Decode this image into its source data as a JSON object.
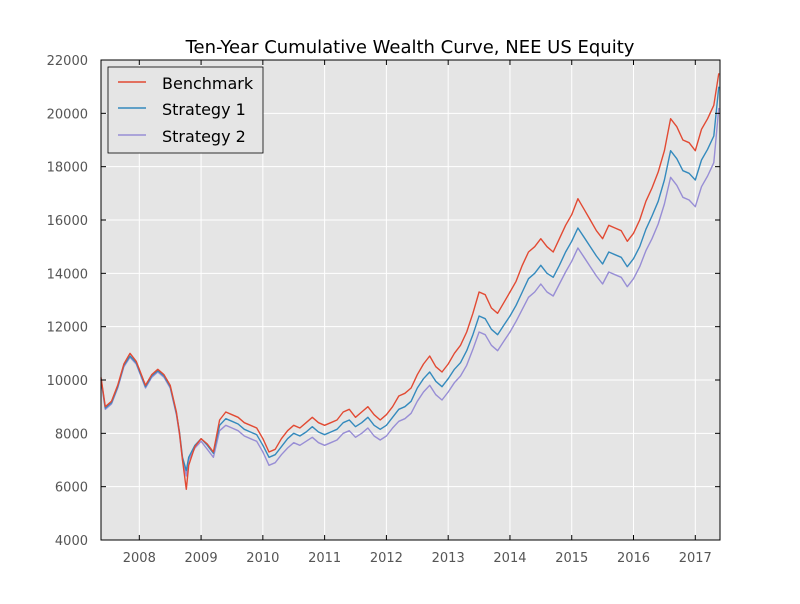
{
  "chart_data": {
    "type": "line",
    "title": "Ten-Year Cumulative Wealth Curve, NEE US Equity",
    "xlabel": "",
    "ylabel": "",
    "x_ticks": [
      "2008",
      "2009",
      "2010",
      "2011",
      "2012",
      "2013",
      "2014",
      "2015",
      "2016",
      "2017"
    ],
    "y_ticks": [
      "4000",
      "6000",
      "8000",
      "10000",
      "12000",
      "14000",
      "16000",
      "18000",
      "20000",
      "22000"
    ],
    "xlim": [
      2007.38,
      2017.4
    ],
    "ylim": [
      4000,
      22000
    ],
    "grid": true,
    "legend_position": "top-left",
    "x": [
      2007.38,
      2007.45,
      2007.55,
      2007.65,
      2007.75,
      2007.85,
      2007.95,
      2008.0,
      2008.1,
      2008.2,
      2008.3,
      2008.4,
      2008.5,
      2008.6,
      2008.65,
      2008.7,
      2008.76,
      2008.8,
      2008.9,
      2009.0,
      2009.1,
      2009.2,
      2009.3,
      2009.4,
      2009.5,
      2009.6,
      2009.7,
      2009.8,
      2009.9,
      2010.0,
      2010.1,
      2010.2,
      2010.3,
      2010.4,
      2010.5,
      2010.6,
      2010.7,
      2010.8,
      2010.9,
      2011.0,
      2011.1,
      2011.2,
      2011.3,
      2011.4,
      2011.5,
      2011.6,
      2011.7,
      2011.8,
      2011.9,
      2012.0,
      2012.1,
      2012.2,
      2012.3,
      2012.4,
      2012.5,
      2012.6,
      2012.7,
      2012.8,
      2012.9,
      2013.0,
      2013.1,
      2013.2,
      2013.3,
      2013.4,
      2013.5,
      2013.6,
      2013.7,
      2013.8,
      2013.9,
      2014.0,
      2014.1,
      2014.2,
      2014.3,
      2014.4,
      2014.5,
      2014.6,
      2014.7,
      2014.8,
      2014.9,
      2015.0,
      2015.1,
      2015.2,
      2015.3,
      2015.4,
      2015.5,
      2015.6,
      2015.7,
      2015.8,
      2015.9,
      2016.0,
      2016.1,
      2016.2,
      2016.3,
      2016.4,
      2016.5,
      2016.6,
      2016.7,
      2016.8,
      2016.9,
      2017.0,
      2017.1,
      2017.2,
      2017.3,
      2017.38
    ],
    "series": [
      {
        "name": "Benchmark",
        "color": "#E24A33",
        "values": [
          10100,
          9000,
          9200,
          9800,
          10600,
          11000,
          10700,
          10400,
          9800,
          10200,
          10400,
          10200,
          9800,
          8800,
          8000,
          7000,
          5900,
          6800,
          7500,
          7800,
          7600,
          7300,
          8500,
          8800,
          8700,
          8600,
          8400,
          8300,
          8200,
          7800,
          7300,
          7400,
          7800,
          8100,
          8300,
          8200,
          8400,
          8600,
          8400,
          8300,
          8400,
          8500,
          8800,
          8900,
          8600,
          8800,
          9000,
          8700,
          8500,
          8700,
          9000,
          9400,
          9500,
          9700,
          10200,
          10600,
          10900,
          10500,
          10300,
          10600,
          11000,
          11300,
          11800,
          12500,
          13300,
          13200,
          12700,
          12500,
          12900,
          13300,
          13700,
          14300,
          14800,
          15000,
          15300,
          15000,
          14800,
          15300,
          15800,
          16200,
          16800,
          16400,
          16000,
          15600,
          15300,
          15800,
          15700,
          15600,
          15200,
          15500,
          16000,
          16700,
          17200,
          17800,
          18600,
          19800,
          19500,
          19000,
          18900,
          18600,
          19400,
          19800,
          20300,
          21500
        ]
      },
      {
        "name": "Strategy 1",
        "color": "#348ABD",
        "values": [
          10050,
          8950,
          9150,
          9750,
          10550,
          10900,
          10650,
          10350,
          9750,
          10150,
          10350,
          10150,
          9750,
          8750,
          8050,
          7100,
          6600,
          7100,
          7550,
          7800,
          7550,
          7250,
          8300,
          8550,
          8450,
          8350,
          8150,
          8050,
          7950,
          7550,
          7100,
          7200,
          7500,
          7800,
          8000,
          7900,
          8050,
          8250,
          8050,
          7950,
          8050,
          8150,
          8400,
          8500,
          8250,
          8400,
          8600,
          8300,
          8150,
          8300,
          8600,
          8900,
          9000,
          9200,
          9700,
          10050,
          10300,
          9950,
          9750,
          10050,
          10400,
          10650,
          11100,
          11700,
          12400,
          12300,
          11900,
          11700,
          12050,
          12400,
          12800,
          13300,
          13800,
          14000,
          14300,
          14000,
          13850,
          14300,
          14800,
          15200,
          15700,
          15350,
          15000,
          14650,
          14350,
          14800,
          14700,
          14600,
          14250,
          14550,
          15000,
          15650,
          16150,
          16700,
          17500,
          18600,
          18300,
          17850,
          17750,
          17500,
          18250,
          18650,
          19150,
          21000
        ]
      },
      {
        "name": "Strategy 2",
        "color": "#988ED5",
        "values": [
          10000,
          8900,
          9100,
          9700,
          10500,
          10850,
          10600,
          10300,
          9700,
          10100,
          10300,
          10100,
          9700,
          8700,
          7950,
          7000,
          6400,
          7000,
          7450,
          7700,
          7400,
          7100,
          8100,
          8300,
          8200,
          8100,
          7900,
          7800,
          7700,
          7300,
          6800,
          6900,
          7200,
          7450,
          7650,
          7550,
          7700,
          7850,
          7650,
          7550,
          7650,
          7750,
          8000,
          8100,
          7850,
          8000,
          8200,
          7900,
          7750,
          7900,
          8200,
          8450,
          8550,
          8750,
          9200,
          9550,
          9800,
          9450,
          9250,
          9550,
          9900,
          10150,
          10550,
          11150,
          11800,
          11700,
          11300,
          11100,
          11450,
          11800,
          12200,
          12650,
          13100,
          13300,
          13600,
          13300,
          13150,
          13600,
          14050,
          14450,
          14950,
          14600,
          14250,
          13900,
          13600,
          14050,
          13950,
          13850,
          13500,
          13800,
          14250,
          14850,
          15300,
          15850,
          16600,
          17600,
          17300,
          16850,
          16750,
          16500,
          17250,
          17650,
          18150,
          20200
        ]
      }
    ]
  }
}
